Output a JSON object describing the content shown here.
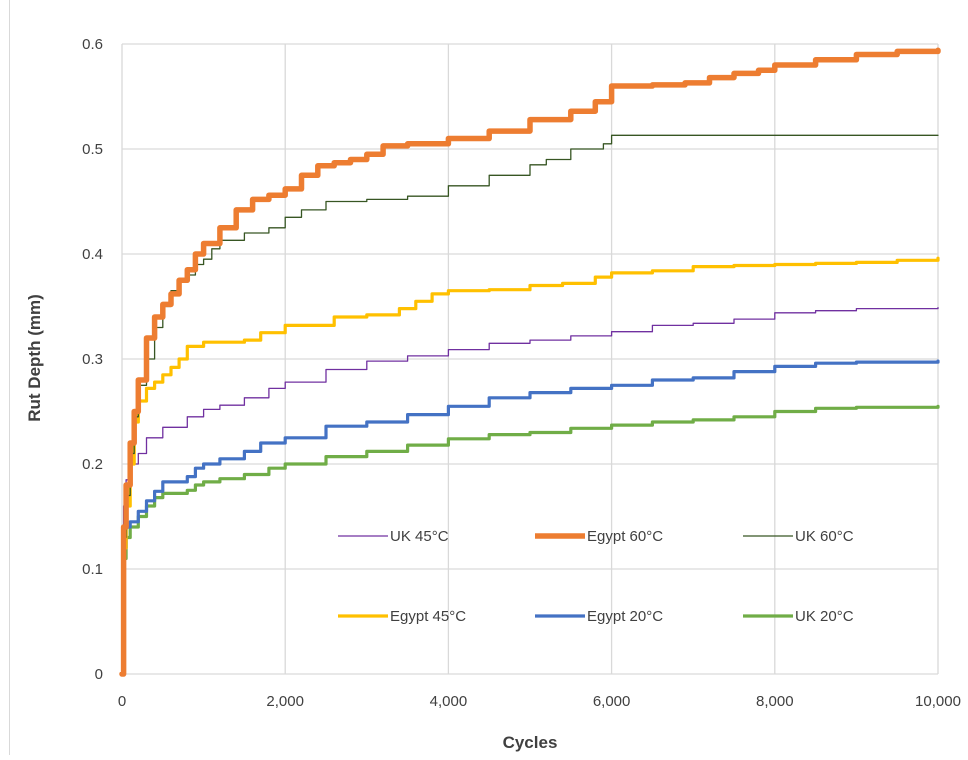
{
  "chart_data": {
    "type": "line",
    "xlabel": "Cycles",
    "ylabel": "Rut Depth (mm)",
    "xlim": [
      0,
      10000
    ],
    "ylim": [
      0,
      0.6
    ],
    "x_ticks": [
      0,
      2000,
      4000,
      6000,
      8000,
      10000
    ],
    "x_tick_labels": [
      "0",
      "2,000",
      "4,000",
      "6,000",
      "8,000",
      "10,000"
    ],
    "y_ticks": [
      0,
      0.1,
      0.2,
      0.3,
      0.4,
      0.5,
      0.6
    ],
    "y_tick_labels": [
      "0",
      "0.1",
      "0.2",
      "0.3",
      "0.4",
      "0.5",
      "0.6"
    ],
    "grid": true,
    "legend_position": "inside-bottom-center",
    "series": [
      {
        "name": "UK 45°C",
        "color": "#7030a0",
        "x": [
          0,
          20,
          50,
          100,
          200,
          300,
          500,
          800,
          1000,
          1200,
          1500,
          1800,
          2000,
          2500,
          3000,
          3500,
          4000,
          4500,
          5000,
          5500,
          6000,
          6500,
          7000,
          7500,
          8000,
          8500,
          9000,
          10000
        ],
        "y": [
          0,
          0.16,
          0.185,
          0.2,
          0.21,
          0.225,
          0.235,
          0.245,
          0.252,
          0.256,
          0.263,
          0.272,
          0.278,
          0.29,
          0.298,
          0.303,
          0.309,
          0.315,
          0.318,
          0.322,
          0.326,
          0.332,
          0.334,
          0.338,
          0.344,
          0.346,
          0.348,
          0.349
        ]
      },
      {
        "name": "Egypt 60°C",
        "color": "#ed7d31",
        "x": [
          0,
          20,
          50,
          100,
          150,
          200,
          300,
          400,
          500,
          600,
          700,
          800,
          900,
          1000,
          1200,
          1400,
          1600,
          1800,
          2000,
          2200,
          2400,
          2600,
          2800,
          3000,
          3200,
          3500,
          4000,
          4500,
          5000,
          5500,
          5800,
          6000,
          6500,
          6900,
          7200,
          7500,
          7800,
          8000,
          8500,
          9000,
          9500,
          10000
        ],
        "y": [
          0,
          0.14,
          0.18,
          0.22,
          0.25,
          0.28,
          0.32,
          0.34,
          0.352,
          0.362,
          0.375,
          0.385,
          0.4,
          0.41,
          0.425,
          0.442,
          0.452,
          0.456,
          0.462,
          0.475,
          0.484,
          0.487,
          0.49,
          0.495,
          0.503,
          0.505,
          0.51,
          0.517,
          0.528,
          0.536,
          0.545,
          0.56,
          0.561,
          0.563,
          0.568,
          0.572,
          0.575,
          0.58,
          0.585,
          0.59,
          0.593,
          0.594
        ]
      },
      {
        "name": "UK 60°C",
        "color": "#375623",
        "x": [
          0,
          20,
          50,
          100,
          150,
          200,
          300,
          400,
          500,
          600,
          700,
          800,
          900,
          1000,
          1100,
          1200,
          1500,
          1800,
          2000,
          2200,
          2500,
          3000,
          3500,
          4000,
          4500,
          5000,
          5200,
          5500,
          5900,
          6000,
          7000,
          8000,
          9000,
          10000
        ],
        "y": [
          0,
          0.13,
          0.17,
          0.21,
          0.245,
          0.275,
          0.3,
          0.33,
          0.35,
          0.365,
          0.375,
          0.38,
          0.39,
          0.395,
          0.405,
          0.413,
          0.42,
          0.425,
          0.435,
          0.442,
          0.45,
          0.452,
          0.455,
          0.465,
          0.475,
          0.485,
          0.49,
          0.5,
          0.505,
          0.513,
          0.513,
          0.513,
          0.513,
          0.513
        ]
      },
      {
        "name": "Egypt 45°C",
        "color": "#ffc000",
        "x": [
          0,
          20,
          50,
          100,
          150,
          200,
          300,
          400,
          500,
          600,
          700,
          800,
          1000,
          1500,
          1700,
          2000,
          2600,
          3000,
          3400,
          3600,
          3800,
          4000,
          4500,
          5000,
          5400,
          5800,
          6000,
          6500,
          7000,
          7500,
          8000,
          8500,
          9000,
          9500,
          10000
        ],
        "y": [
          0,
          0.12,
          0.16,
          0.2,
          0.24,
          0.26,
          0.272,
          0.278,
          0.285,
          0.292,
          0.3,
          0.312,
          0.316,
          0.318,
          0.325,
          0.332,
          0.34,
          0.342,
          0.348,
          0.355,
          0.362,
          0.365,
          0.366,
          0.37,
          0.372,
          0.378,
          0.382,
          0.384,
          0.388,
          0.389,
          0.39,
          0.391,
          0.392,
          0.394,
          0.396
        ]
      },
      {
        "name": "Egypt 20°C",
        "color": "#4472c4",
        "x": [
          0,
          20,
          50,
          100,
          200,
          300,
          400,
          500,
          800,
          900,
          1000,
          1200,
          1500,
          1700,
          2000,
          2500,
          3000,
          3500,
          4000,
          4500,
          5000,
          5500,
          6000,
          6500,
          7000,
          7500,
          8000,
          8500,
          9000,
          10000
        ],
        "y": [
          0,
          0.12,
          0.14,
          0.145,
          0.155,
          0.165,
          0.174,
          0.183,
          0.188,
          0.196,
          0.2,
          0.205,
          0.212,
          0.22,
          0.225,
          0.236,
          0.24,
          0.247,
          0.255,
          0.263,
          0.268,
          0.272,
          0.275,
          0.28,
          0.282,
          0.288,
          0.293,
          0.296,
          0.297,
          0.298
        ]
      },
      {
        "name": "UK 20°C",
        "color": "#70ad47",
        "x": [
          0,
          20,
          50,
          100,
          200,
          300,
          400,
          500,
          800,
          900,
          1000,
          1200,
          1500,
          1800,
          2000,
          2500,
          3000,
          3500,
          4000,
          4500,
          5000,
          5500,
          6000,
          6500,
          7000,
          7500,
          8000,
          8500,
          9000,
          10000
        ],
        "y": [
          0,
          0.11,
          0.13,
          0.14,
          0.15,
          0.16,
          0.168,
          0.172,
          0.175,
          0.18,
          0.183,
          0.186,
          0.19,
          0.196,
          0.2,
          0.207,
          0.212,
          0.218,
          0.224,
          0.228,
          0.23,
          0.234,
          0.237,
          0.24,
          0.242,
          0.245,
          0.25,
          0.253,
          0.254,
          0.255
        ]
      }
    ],
    "legend_rows": [
      [
        "UK 45°C",
        "Egypt 60°C",
        "UK 60°C"
      ],
      [
        "Egypt 45°C",
        "Egypt 20°C",
        "UK 20°C"
      ]
    ]
  },
  "colors": {
    "grid": "#d9d9d9",
    "text": "#404040"
  }
}
